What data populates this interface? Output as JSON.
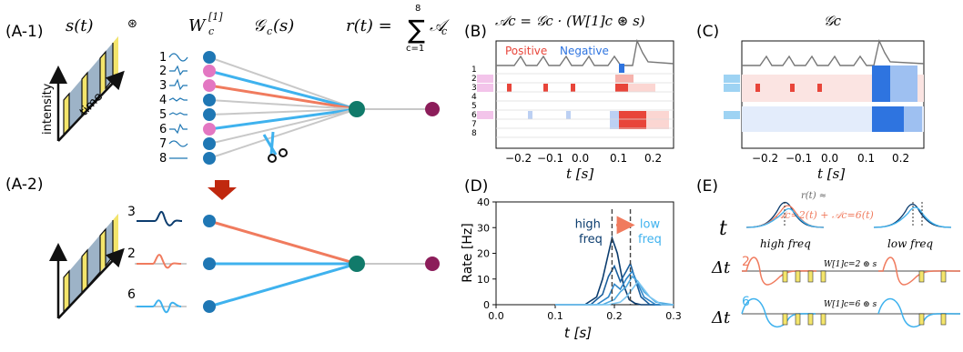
{
  "labels": {
    "a1": "(A-1)",
    "a2": "(A-2)",
    "b": "(B)",
    "c": "(C)",
    "d": "(D)",
    "e": "(E)"
  },
  "panelA": {
    "s_t": "s(t)",
    "conv_symbol": "⊛",
    "filter_label": "W",
    "filter_sup": "[1]",
    "filter_sub": "c",
    "gate_label": "𝒢",
    "gate_sub": "c",
    "gate_arg": "(s)",
    "readout_lhs": "r(t) =",
    "sum_top": "8",
    "sum_bottom": "c=1",
    "readout_term": "𝒜",
    "readout_sub": "c",
    "intensity": "intensity",
    "time": "time",
    "channels": [
      "1",
      "2",
      "3",
      "4",
      "5",
      "6",
      "7",
      "8"
    ],
    "a2_channels": [
      "3",
      "2",
      "6"
    ]
  },
  "panelB": {
    "title": "𝒜c = 𝒢c · (W[1]c ⊛ s)",
    "legend_pos": "Positive",
    "legend_neg": "Negative",
    "rows": [
      "1",
      "2",
      "3",
      "4",
      "5",
      "6",
      "7",
      "8"
    ],
    "xticks": [
      "−0.2",
      "−0.1",
      "0.0",
      "0.1",
      "0.2"
    ],
    "xlabel": "t [s]"
  },
  "panelC": {
    "title": "𝒢c",
    "xticks": [
      "−0.2",
      "−0.1",
      "0.0",
      "0.1",
      "0.2"
    ],
    "xlabel": "t [s]"
  },
  "panelE": {
    "t": "t",
    "dt": "Δt",
    "approx": "r(t) ≈",
    "sum_text": "𝒜c=2(t) + 𝒜c=6(t)",
    "high": "high freq",
    "low": "low freq",
    "row2": "2",
    "row6": "6",
    "w2": "W[1]c=2 ⊛ s",
    "w6": "W[1]c=6 ⊛ s"
  },
  "colors": {
    "blue_node": "#1f77b4",
    "pink_node": "#e377c2",
    "teal_node": "#117a6a",
    "purple_node": "#8c1d5a",
    "orange_line": "#f07b5e",
    "cyan_line": "#3fb2ee",
    "gray_line": "#c8c8c8",
    "red_arrow": "#c0280f",
    "yellow": "#f4e56b",
    "stim_blue": "#9db3c7",
    "neg_blue": "#2e74e0",
    "pos_red": "#e8453a"
  },
  "chart_data": {
    "type": "line",
    "xlabel": "t [s]",
    "ylabel": "Rate [Hz]",
    "xlim": [
      0.0,
      0.3
    ],
    "ylim": [
      0,
      40
    ],
    "xticks": [
      "0.0",
      "0.1",
      "0.2",
      "0.3"
    ],
    "yticks": [
      "0",
      "10",
      "20",
      "30",
      "40"
    ],
    "annotations": [
      {
        "text": "high",
        "x": 0.155,
        "y": 30
      },
      {
        "text": "freq",
        "x": 0.16,
        "y": 24
      },
      {
        "text": "low",
        "x": 0.26,
        "y": 30
      },
      {
        "text": "freq",
        "x": 0.26,
        "y": 24
      }
    ],
    "vlines": [
      0.196,
      0.227
    ],
    "series": [
      {
        "color": "#0b3c6e",
        "x": [
          0.1,
          0.15,
          0.17,
          0.18,
          0.19,
          0.196,
          0.205,
          0.215,
          0.225,
          0.235,
          0.245,
          0.26,
          0.3
        ],
        "y": [
          0,
          0,
          3,
          10,
          20,
          26,
          20,
          8,
          2,
          0.5,
          0,
          0,
          0
        ]
      },
      {
        "color": "#1a5e9c",
        "x": [
          0.1,
          0.16,
          0.18,
          0.19,
          0.2,
          0.21,
          0.22,
          0.227,
          0.235,
          0.245,
          0.26,
          0.3
        ],
        "y": [
          0,
          0,
          4,
          11,
          15,
          9,
          13,
          16,
          10,
          3,
          0,
          0
        ]
      },
      {
        "color": "#2f86c9",
        "x": [
          0.1,
          0.17,
          0.19,
          0.2,
          0.21,
          0.22,
          0.23,
          0.24,
          0.25,
          0.27,
          0.3
        ],
        "y": [
          0,
          0,
          3,
          8,
          6,
          10,
          13,
          8,
          3,
          0,
          0
        ]
      },
      {
        "color": "#4ea9e0",
        "x": [
          0.1,
          0.18,
          0.2,
          0.21,
          0.22,
          0.23,
          0.24,
          0.25,
          0.27,
          0.3
        ],
        "y": [
          0,
          0,
          2,
          5,
          7,
          11,
          9,
          5,
          1,
          0
        ]
      },
      {
        "color": "#7cc6f0",
        "x": [
          0.1,
          0.19,
          0.21,
          0.22,
          0.23,
          0.24,
          0.25,
          0.26,
          0.28,
          0.3
        ],
        "y": [
          0,
          0,
          1,
          3,
          6,
          9,
          6,
          3,
          0,
          0
        ]
      }
    ]
  }
}
